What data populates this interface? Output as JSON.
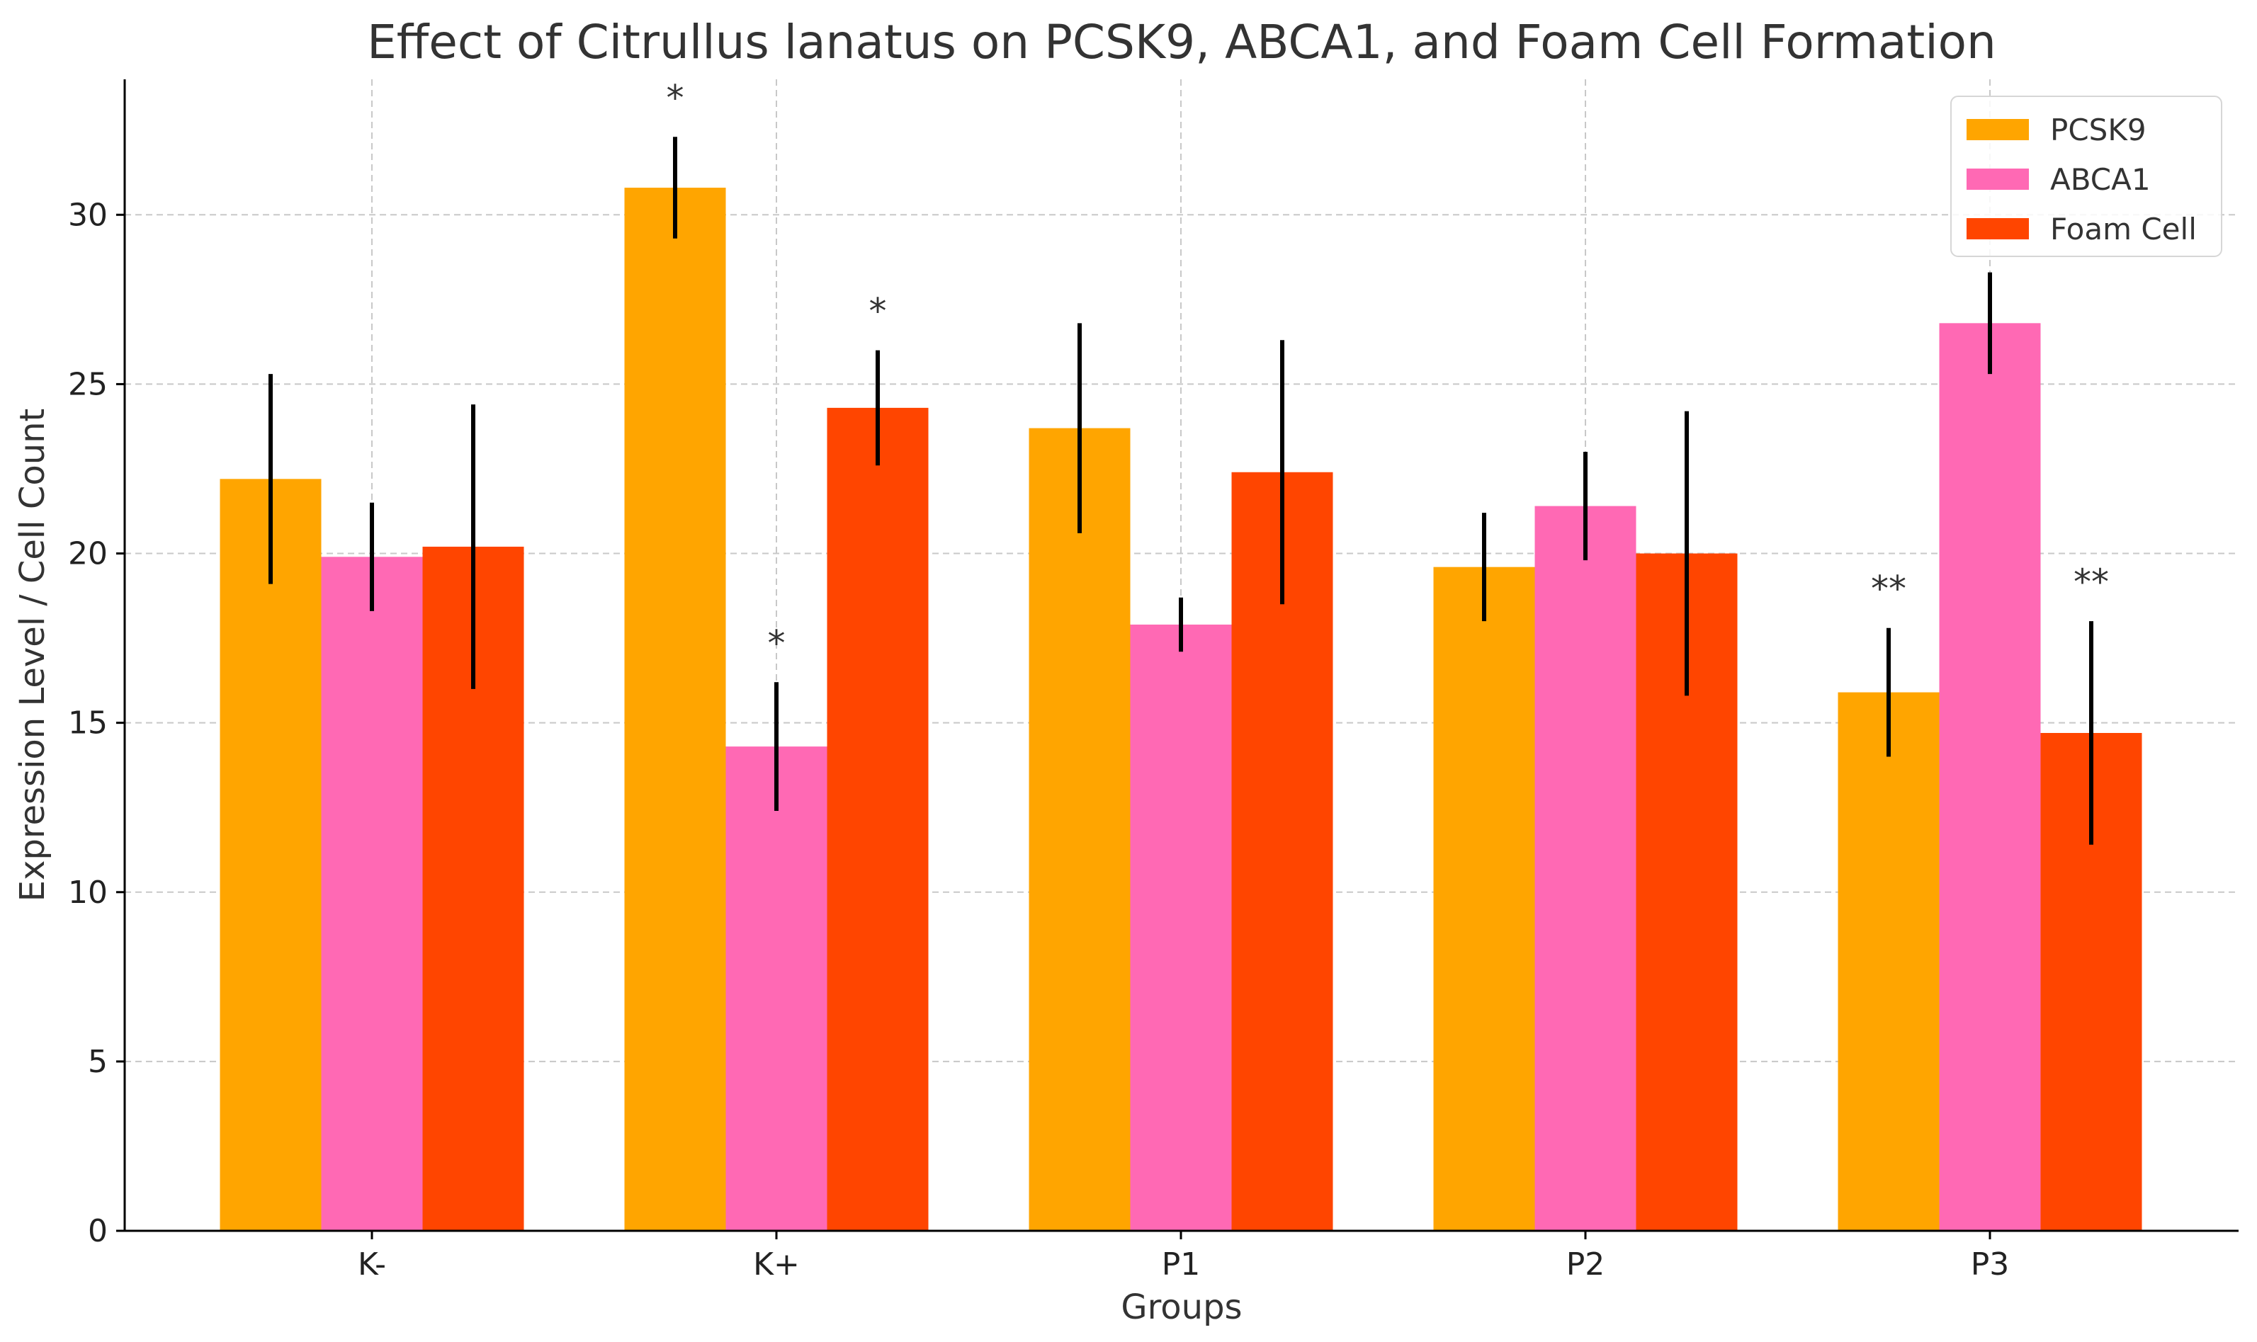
{
  "chart_data": {
    "type": "bar",
    "title": "Effect of Citrullus lanatus on PCSK9, ABCA1, and Foam Cell Formation",
    "xlabel": "Groups",
    "ylabel": "Expression Level / Cell Count",
    "categories": [
      "K-",
      "K+",
      "P1",
      "P2",
      "P3"
    ],
    "ylim": [
      0,
      34
    ],
    "yticks": [
      0,
      5,
      10,
      15,
      20,
      25,
      30
    ],
    "ytick_labels": [
      "0",
      "5",
      "10",
      "15",
      "20",
      "25",
      "30"
    ],
    "grid": true,
    "legend_position": "top-right",
    "series": [
      {
        "name": "PCSK9",
        "color": "#FFA500",
        "values": [
          22.2,
          30.8,
          23.7,
          19.6,
          15.9
        ],
        "errors": [
          3.1,
          1.5,
          3.1,
          1.6,
          1.9
        ]
      },
      {
        "name": "ABCA1",
        "color": "#FF69B4",
        "values": [
          19.9,
          14.3,
          17.9,
          21.4,
          26.8
        ],
        "errors": [
          1.6,
          1.9,
          0.8,
          1.6,
          1.5
        ]
      },
      {
        "name": "Foam Cell",
        "color": "#FF4500",
        "values": [
          20.2,
          24.3,
          22.4,
          20.0,
          14.7
        ],
        "errors": [
          4.2,
          1.7,
          3.9,
          4.2,
          3.3
        ]
      }
    ],
    "annotations": [
      {
        "category": "K+",
        "series": "PCSK9",
        "text": "*"
      },
      {
        "category": "K+",
        "series": "ABCA1",
        "text": "*"
      },
      {
        "category": "K+",
        "series": "Foam Cell",
        "text": "*"
      },
      {
        "category": "P3",
        "series": "PCSK9",
        "text": "**"
      },
      {
        "category": "P3",
        "series": "Foam Cell",
        "text": "**"
      }
    ]
  }
}
